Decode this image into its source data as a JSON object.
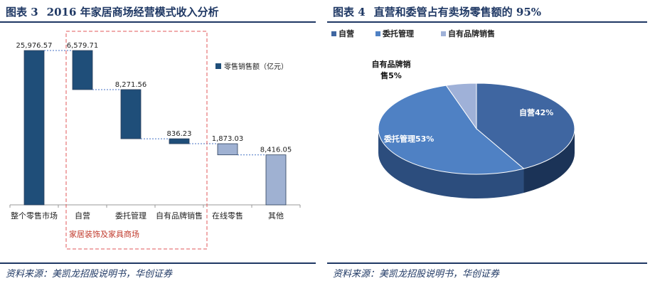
{
  "left": {
    "figure_no": "图表 3",
    "title": "2016 年家居商场经营模式收入分析",
    "source": "资料来源：美凯龙招股说明书，华创证券",
    "legend": "零售销售额（亿元）",
    "group_label": "家居装饰及家具商场",
    "colors": {
      "dark": "#1f4e79",
      "light": "#9fb1d2"
    }
  },
  "right": {
    "figure_no": "图表 4",
    "title": "直营和委管占有卖场零售额的 95%",
    "source": "资料来源：美凯龙招股说明书，华创证券",
    "legend": [
      "自营",
      "委托管理",
      "自有品牌销售"
    ],
    "labels": {
      "self": "自营42%",
      "entrusted": "委托管理53%",
      "own_line1": "自有品牌销",
      "own_line2": "售5%"
    },
    "colors": {
      "self": "#3f66a1",
      "entrusted": "#4f81c4",
      "own": "#9fb1d8"
    }
  },
  "chart_data": [
    {
      "type": "bar",
      "subtype": "waterfall",
      "title": "2016 年家居商场经营模式收入分析",
      "categories": [
        "整个零售市场",
        "自营",
        "委托管理",
        "自有品牌销售",
        "在线零售",
        "其他"
      ],
      "values": [
        25976.57,
        6579.71,
        8271.56,
        836.23,
        1873.03,
        8416.05
      ],
      "value_labels": [
        "25,976.57",
        "6,579.71",
        "8,271.56",
        "836.23",
        "1,873.03",
        "8,416.05"
      ],
      "series": [
        {
          "name": "零售销售额（亿元）",
          "values": [
            25976.57,
            6579.71,
            8271.56,
            836.23,
            1873.03,
            8416.05
          ]
        }
      ],
      "ylim": [
        0,
        25976.57
      ]
    },
    {
      "type": "pie",
      "title": "直营和委管占有卖场零售额的 95%",
      "categories": [
        "自营",
        "委托管理",
        "自有品牌销售"
      ],
      "values": [
        42,
        53,
        5
      ]
    }
  ]
}
